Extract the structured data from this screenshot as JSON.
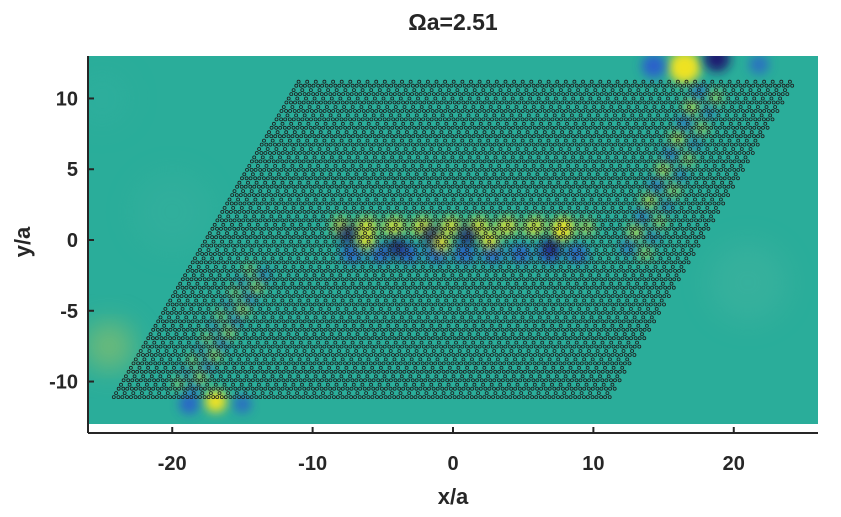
{
  "chart_data": {
    "type": "heatmap",
    "title": "Ωa=2.51",
    "xlabel": "x/a",
    "ylabel": "y/a",
    "xlim": [
      -26,
      26
    ],
    "ylim": [
      -13,
      13
    ],
    "x_ticks": [
      -20,
      -10,
      0,
      10,
      20
    ],
    "x_tick_labels": [
      "-20",
      "-10",
      "0",
      "10",
      "20"
    ],
    "y_ticks": [
      -10,
      -5,
      0,
      5,
      10
    ],
    "y_tick_labels": [
      "-10",
      "-5",
      "0",
      "5",
      "10"
    ],
    "grid": false,
    "colormap": "parula",
    "colors": {
      "background": "#2aad9a",
      "positive_peak": "#f9e51e",
      "negative_peak": "#1b1470",
      "lattice": "#1c1c1c"
    },
    "lattice": {
      "shape": "parallelogram",
      "corners": [
        [
          -24,
          -11
        ],
        [
          11,
          -11
        ],
        [
          24,
          11
        ],
        [
          -11,
          11
        ]
      ],
      "site": "trimer"
    },
    "field_features": [
      {
        "region": "domain wall along y=0",
        "x_range": [
          -8,
          9
        ],
        "y": 0,
        "pattern": "alternating positive/negative lobes"
      },
      {
        "region": "upper-right lattice edge",
        "x": [
          13,
          17
        ],
        "y": [
          0,
          10
        ]
      },
      {
        "region": "lower-left lattice edge",
        "x": [
          -18,
          -14
        ],
        "y": [
          -11,
          -3
        ]
      },
      {
        "region": "strong hotspot",
        "x": 17,
        "y": 12
      },
      {
        "region": "hotspot",
        "x": -17,
        "y": -11
      }
    ]
  }
}
